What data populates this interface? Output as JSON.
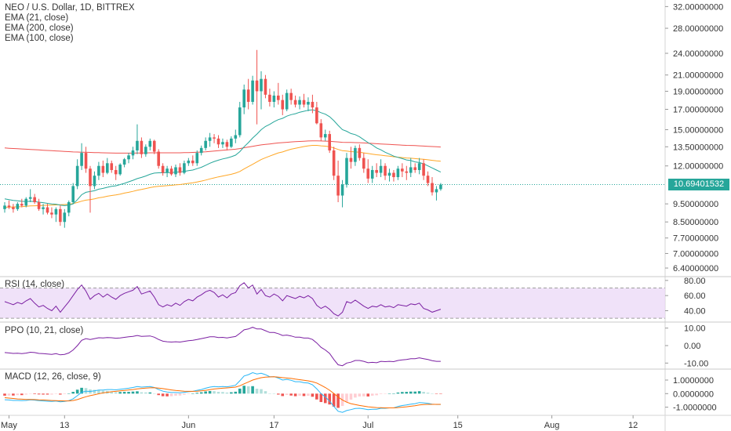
{
  "header": {
    "symbol_title": "NEO / U.S. Dollar, 1D, BITTREX",
    "ema21_label": "EMA (21, close)",
    "ema200_label": "EMA (200, close)",
    "ema100_label": "EMA (100, close)"
  },
  "panes": {
    "rsi_label": "RSI (14, close)",
    "ppo_label": "PPO (10, 21, close)",
    "macd_label": "MACD (12, 26, close, 9)"
  },
  "last_price": "10.69401532",
  "price_axis_labels": [
    "32.00000000",
    "28.00000000",
    "24.00000000",
    "21.00000000",
    "19.00000000",
    "17.00000000",
    "15.00000000",
    "13.50000000",
    "12.00000000",
    "9.50000000",
    "8.50000000",
    "7.70000000",
    "7.00000000",
    "6.40000000"
  ],
  "rsi_axis_labels": [
    "80.00",
    "60.00",
    "40.00"
  ],
  "ppo_axis_labels": [
    "10.00",
    "0.00",
    "-10.00"
  ],
  "macd_axis_labels": [
    "1.0000000",
    "0.0000000",
    "-1.0000000"
  ],
  "x_axis_labels": [
    "May",
    "13",
    "Jun",
    "17",
    "Jul",
    "15",
    "Aug",
    "12"
  ],
  "colors": {
    "up": "#26a69a",
    "down": "#ef5350",
    "ema21": "#26a69a",
    "ema100": "#ffa726",
    "ema200": "#ef5350",
    "rsi": "#7b1fa2",
    "rsi_band": "#e9d5f7",
    "ppo": "#7b1fa2",
    "macd": "#29b6f6",
    "signal": "#ff6d00",
    "badge": "#26a69a"
  },
  "chart_data": {
    "type": "candlestick",
    "y_scale": "log",
    "ylim": [
      6.1,
      33
    ],
    "candles": [
      [
        9.2,
        9.6,
        9.0,
        9.4
      ],
      [
        9.4,
        9.7,
        9.2,
        9.3
      ],
      [
        9.3,
        9.5,
        9.0,
        9.2
      ],
      [
        9.2,
        9.6,
        9.1,
        9.5
      ],
      [
        9.5,
        9.8,
        9.3,
        9.4
      ],
      [
        9.4,
        9.9,
        9.3,
        9.8
      ],
      [
        9.8,
        10.4,
        9.6,
        9.9
      ],
      [
        9.9,
        10.1,
        9.5,
        9.6
      ],
      [
        9.6,
        9.8,
        9.1,
        9.2
      ],
      [
        9.2,
        9.5,
        8.9,
        9.3
      ],
      [
        9.3,
        9.5,
        8.9,
        9.0
      ],
      [
        9.0,
        9.3,
        8.7,
        8.9
      ],
      [
        8.9,
        9.3,
        8.5,
        9.2
      ],
      [
        9.2,
        9.4,
        8.3,
        8.5
      ],
      [
        8.5,
        9.2,
        8.2,
        9.0
      ],
      [
        9.0,
        9.7,
        8.8,
        9.6
      ],
      [
        9.6,
        10.8,
        9.5,
        10.6
      ],
      [
        10.6,
        12.5,
        10.4,
        12.0
      ],
      [
        12.0,
        13.8,
        11.7,
        13.0
      ],
      [
        13.0,
        13.5,
        11.5,
        11.8
      ],
      [
        11.8,
        12.0,
        9.0,
        10.6
      ],
      [
        10.6,
        11.6,
        10.4,
        11.3
      ],
      [
        11.3,
        12.3,
        11.0,
        12.0
      ],
      [
        12.0,
        12.4,
        11.2,
        11.5
      ],
      [
        11.5,
        12.6,
        11.4,
        12.2
      ],
      [
        12.2,
        12.4,
        11.5,
        11.7
      ],
      [
        11.7,
        12.0,
        11.0,
        11.4
      ],
      [
        11.4,
        12.2,
        11.3,
        12.1
      ],
      [
        12.1,
        12.6,
        11.9,
        12.5
      ],
      [
        12.5,
        13.0,
        12.2,
        12.8
      ],
      [
        12.8,
        13.5,
        12.5,
        13.2
      ],
      [
        13.2,
        15.5,
        12.9,
        14.0
      ],
      [
        14.0,
        14.3,
        12.6,
        12.9
      ],
      [
        12.9,
        13.7,
        12.7,
        13.5
      ],
      [
        13.5,
        14.2,
        13.2,
        14.0
      ],
      [
        14.0,
        14.1,
        12.9,
        13.1
      ],
      [
        13.1,
        13.3,
        11.8,
        12.0
      ],
      [
        12.0,
        12.2,
        11.3,
        11.5
      ],
      [
        11.5,
        12.0,
        11.2,
        11.8
      ],
      [
        11.8,
        12.0,
        11.3,
        11.4
      ],
      [
        11.4,
        12.1,
        11.2,
        11.9
      ],
      [
        11.9,
        12.2,
        11.3,
        11.5
      ],
      [
        11.5,
        12.4,
        11.4,
        12.2
      ],
      [
        12.2,
        12.6,
        12.0,
        12.4
      ],
      [
        12.4,
        12.8,
        12.0,
        12.2
      ],
      [
        12.2,
        13.2,
        12.0,
        13.0
      ],
      [
        13.0,
        13.6,
        12.8,
        13.4
      ],
      [
        13.4,
        14.3,
        13.2,
        14.0
      ],
      [
        14.0,
        14.7,
        13.5,
        14.3
      ],
      [
        14.3,
        14.6,
        13.8,
        14.2
      ],
      [
        14.2,
        14.5,
        13.4,
        13.7
      ],
      [
        13.7,
        14.2,
        13.4,
        13.9
      ],
      [
        13.9,
        14.1,
        13.2,
        13.5
      ],
      [
        13.5,
        14.4,
        13.4,
        14.2
      ],
      [
        14.2,
        15.0,
        13.8,
        14.5
      ],
      [
        14.5,
        17.8,
        14.3,
        17.2
      ],
      [
        17.2,
        19.8,
        16.5,
        19.2
      ],
      [
        19.2,
        20.5,
        17.0,
        17.8
      ],
      [
        17.8,
        20.9,
        17.5,
        20.3
      ],
      [
        20.3,
        24.5,
        15.5,
        19.0
      ],
      [
        19.0,
        21.5,
        17.0,
        20.5
      ],
      [
        20.5,
        21.0,
        18.2,
        18.6
      ],
      [
        18.6,
        19.3,
        17.3,
        17.8
      ],
      [
        17.8,
        19.0,
        17.2,
        18.5
      ],
      [
        18.5,
        20.0,
        17.5,
        18.0
      ],
      [
        18.0,
        18.6,
        16.4,
        17.0
      ],
      [
        17.0,
        19.2,
        16.8,
        18.8
      ],
      [
        18.8,
        19.3,
        17.5,
        18.0
      ],
      [
        18.0,
        18.5,
        17.2,
        17.5
      ],
      [
        17.5,
        18.4,
        17.0,
        18.0
      ],
      [
        18.0,
        18.7,
        17.2,
        17.5
      ],
      [
        17.5,
        18.3,
        16.8,
        17.8
      ],
      [
        17.8,
        18.6,
        16.6,
        17.2
      ],
      [
        17.2,
        17.8,
        15.5,
        15.6
      ],
      [
        15.6,
        16.0,
        14.0,
        14.3
      ],
      [
        14.3,
        15.0,
        14.0,
        14.6
      ],
      [
        14.6,
        14.9,
        13.0,
        13.2
      ],
      [
        13.2,
        13.5,
        11.0,
        11.3
      ],
      [
        11.3,
        12.4,
        9.6,
        10.0
      ],
      [
        10.0,
        11.0,
        9.3,
        10.7
      ],
      [
        10.7,
        13.0,
        10.5,
        12.6
      ],
      [
        12.6,
        13.5,
        11.8,
        12.3
      ],
      [
        12.3,
        13.6,
        12.0,
        13.4
      ],
      [
        13.4,
        13.7,
        12.4,
        12.6
      ],
      [
        12.6,
        13.0,
        11.5,
        11.8
      ],
      [
        11.8,
        12.5,
        10.8,
        11.1
      ],
      [
        11.1,
        12.0,
        10.8,
        11.7
      ],
      [
        11.7,
        12.2,
        11.2,
        11.5
      ],
      [
        11.5,
        12.5,
        11.2,
        12.0
      ],
      [
        12.0,
        12.2,
        11.0,
        11.3
      ],
      [
        11.3,
        11.8,
        10.9,
        11.5
      ],
      [
        11.5,
        11.7,
        10.9,
        11.2
      ],
      [
        11.2,
        12.0,
        11.0,
        11.8
      ],
      [
        11.8,
        12.2,
        11.2,
        11.6
      ],
      [
        11.6,
        12.0,
        11.0,
        11.5
      ],
      [
        11.5,
        12.6,
        11.2,
        11.9
      ],
      [
        11.9,
        12.2,
        11.5,
        11.7
      ],
      [
        11.7,
        12.6,
        11.4,
        12.2
      ],
      [
        12.2,
        12.5,
        11.0,
        11.3
      ],
      [
        11.3,
        11.6,
        10.6,
        10.8
      ],
      [
        10.8,
        11.2,
        10.0,
        10.2
      ],
      [
        10.2,
        10.6,
        9.7,
        10.4
      ],
      [
        10.4,
        10.8,
        10.3,
        10.7
      ]
    ],
    "ema21": [
      9.8,
      9.75,
      9.7,
      9.68,
      9.65,
      9.64,
      9.65,
      9.63,
      9.6,
      9.57,
      9.53,
      9.5,
      9.48,
      9.43,
      9.4,
      9.42,
      9.5,
      9.75,
      10.05,
      10.2,
      10.25,
      10.3,
      10.4,
      10.45,
      10.52,
      10.58,
      10.62,
      10.7,
      10.78,
      10.88,
      10.98,
      11.1,
      11.18,
      11.28,
      11.4,
      11.48,
      11.5,
      11.5,
      11.52,
      11.52,
      11.55,
      11.56,
      11.6,
      11.66,
      11.7,
      11.8,
      11.9,
      12.05,
      12.2,
      12.33,
      12.43,
      12.53,
      12.6,
      12.7,
      12.82,
      13.1,
      13.5,
      13.85,
      14.25,
      14.6,
      15.0,
      15.3,
      15.5,
      15.75,
      15.95,
      16.08,
      16.3,
      16.45,
      16.55,
      16.7,
      16.8,
      16.9,
      16.95,
      16.85,
      16.65,
      16.5,
      16.25,
      15.85,
      15.4,
      15.0,
      14.85,
      14.65,
      14.55,
      14.35,
      14.1,
      13.85,
      13.65,
      13.4,
      13.25,
      13.05,
      12.9,
      12.75,
      12.65,
      12.55,
      12.45,
      12.4,
      12.3,
      12.25,
      12.15,
      12.0,
      11.85,
      11.7,
      11.55
    ],
    "ema100": [
      9.3,
      9.31,
      9.32,
      9.33,
      9.34,
      9.36,
      9.38,
      9.39,
      9.4,
      9.41,
      9.42,
      9.43,
      9.44,
      9.45,
      9.46,
      9.48,
      9.52,
      9.58,
      9.66,
      9.72,
      9.75,
      9.8,
      9.86,
      9.9,
      9.96,
      10.0,
      10.04,
      10.09,
      10.15,
      10.2,
      10.26,
      10.33,
      10.38,
      10.44,
      10.5,
      10.55,
      10.58,
      10.6,
      10.63,
      10.65,
      10.68,
      10.7,
      10.74,
      10.78,
      10.82,
      10.87,
      10.93,
      11.0,
      11.08,
      11.15,
      11.22,
      11.28,
      11.34,
      11.4,
      11.48,
      11.6,
      11.78,
      11.95,
      12.12,
      12.3,
      12.48,
      12.62,
      12.75,
      12.88,
      13.0,
      13.08,
      13.2,
      13.3,
      13.38,
      13.45,
      13.52,
      13.58,
      13.62,
      13.62,
      13.58,
      13.55,
      13.5,
      13.4,
      13.28,
      13.18,
      13.15,
      13.1,
      13.08,
      13.05,
      13.0,
      12.95,
      12.9,
      12.85,
      12.82,
      12.78,
      12.74,
      12.7,
      12.66,
      12.63,
      12.6,
      12.58,
      12.55,
      12.52,
      12.5,
      12.46,
      12.42,
      12.38,
      12.35
    ],
    "ema200": [
      13.4,
      13.38,
      13.36,
      13.34,
      13.32,
      13.3,
      13.28,
      13.26,
      13.24,
      13.22,
      13.2,
      13.18,
      13.16,
      13.14,
      13.12,
      13.1,
      13.08,
      13.07,
      13.06,
      13.05,
      13.04,
      13.03,
      13.02,
      13.01,
      13.0,
      12.99,
      12.98,
      12.98,
      12.98,
      12.98,
      12.98,
      12.99,
      12.99,
      13.0,
      13.01,
      13.01,
      13.01,
      13.01,
      13.01,
      13.01,
      13.01,
      13.01,
      13.02,
      13.03,
      13.04,
      13.05,
      13.07,
      13.09,
      13.12,
      13.15,
      13.18,
      13.21,
      13.24,
      13.27,
      13.3,
      13.35,
      13.42,
      13.48,
      13.54,
      13.6,
      13.66,
      13.7,
      13.74,
      13.78,
      13.82,
      13.85,
      13.88,
      13.91,
      13.93,
      13.95,
      13.97,
      13.99,
      14.0,
      14.0,
      13.99,
      13.98,
      13.97,
      13.94,
      13.91,
      13.88,
      13.87,
      13.86,
      13.85,
      13.84,
      13.82,
      13.8,
      13.78,
      13.76,
      13.74,
      13.72,
      13.7,
      13.68,
      13.66,
      13.64,
      13.62,
      13.61,
      13.6,
      13.58,
      13.56,
      13.54,
      13.52,
      13.5,
      13.48
    ],
    "rsi": [
      52,
      50,
      48,
      51,
      49,
      53,
      56,
      50,
      45,
      47,
      43,
      40,
      46,
      38,
      45,
      52,
      60,
      68,
      74,
      66,
      55,
      60,
      63,
      58,
      62,
      58,
      55,
      60,
      63,
      65,
      67,
      72,
      62,
      64,
      66,
      58,
      48,
      45,
      48,
      46,
      50,
      47,
      52,
      55,
      53,
      58,
      61,
      65,
      67,
      64,
      58,
      61,
      57,
      62,
      64,
      73,
      77,
      70,
      74,
      62,
      68,
      60,
      58,
      62,
      59,
      53,
      60,
      58,
      56,
      59,
      57,
      60,
      56,
      47,
      43,
      46,
      42,
      36,
      33,
      38,
      52,
      50,
      54,
      50,
      46,
      43,
      46,
      45,
      48,
      45,
      46,
      44,
      48,
      47,
      46,
      49,
      48,
      50,
      43,
      41,
      38,
      40,
      42
    ],
    "rsi_ylim": [
      26,
      84
    ],
    "ppo": [
      -4,
      -4.2,
      -4.5,
      -4.4,
      -4.6,
      -4.3,
      -3.8,
      -4,
      -4.5,
      -4.6,
      -4.8,
      -5,
      -4.6,
      -5.3,
      -5,
      -4.2,
      -2.5,
      0,
      3,
      4,
      3.5,
      4,
      4.5,
      4.4,
      4.6,
      4.5,
      4.2,
      4.4,
      4.7,
      5,
      5.3,
      5.8,
      5.3,
      5.4,
      5.5,
      4.8,
      3.5,
      2.5,
      2.2,
      2,
      2.2,
      2,
      2.4,
      2.8,
      3,
      3.5,
      4,
      4.5,
      5,
      5,
      4.6,
      4.7,
      4.4,
      4.8,
      5.2,
      7,
      9,
      9.5,
      10.5,
      9.5,
      9.5,
      8.5,
      7.5,
      7.5,
      6.8,
      5.8,
      6,
      5.5,
      4.8,
      4.8,
      4.3,
      4.3,
      3.5,
      1.5,
      -1,
      -2.5,
      -4.5,
      -8,
      -11,
      -11.5,
      -10,
      -9.5,
      -8.5,
      -8.5,
      -9,
      -9.8,
      -9.6,
      -9.8,
      -9,
      -9.2,
      -9,
      -9.2,
      -8.5,
      -8.2,
      -8,
      -7.5,
      -7.5,
      -7,
      -7.5,
      -8,
      -8.6,
      -9,
      -9
    ],
    "ppo_ylim": [
      -13,
      13
    ],
    "macd": [
      -0.45,
      -0.47,
      -0.5,
      -0.5,
      -0.52,
      -0.5,
      -0.46,
      -0.48,
      -0.52,
      -0.54,
      -0.56,
      -0.58,
      -0.55,
      -0.6,
      -0.58,
      -0.52,
      -0.38,
      -0.15,
      0.1,
      0.18,
      0.16,
      0.2,
      0.26,
      0.26,
      0.3,
      0.3,
      0.28,
      0.32,
      0.36,
      0.4,
      0.45,
      0.52,
      0.48,
      0.5,
      0.52,
      0.45,
      0.3,
      0.18,
      0.12,
      0.08,
      0.08,
      0.06,
      0.1,
      0.14,
      0.17,
      0.24,
      0.3,
      0.4,
      0.48,
      0.52,
      0.5,
      0.52,
      0.5,
      0.55,
      0.62,
      0.95,
      1.3,
      1.4,
      1.55,
      1.45,
      1.5,
      1.4,
      1.25,
      1.25,
      1.15,
      1.0,
      1.05,
      0.98,
      0.88,
      0.88,
      0.8,
      0.78,
      0.65,
      0.35,
      0.0,
      -0.25,
      -0.55,
      -0.95,
      -1.3,
      -1.38,
      -1.25,
      -1.18,
      -1.1,
      -1.08,
      -1.12,
      -1.18,
      -1.15,
      -1.15,
      -1.08,
      -1.08,
      -1.05,
      -1.05,
      -0.95,
      -0.88,
      -0.84,
      -0.78,
      -0.74,
      -0.66,
      -0.68,
      -0.72,
      -0.78,
      -0.8,
      -0.8
    ],
    "macd_signal": [
      -0.3,
      -0.33,
      -0.36,
      -0.39,
      -0.41,
      -0.43,
      -0.43,
      -0.44,
      -0.46,
      -0.47,
      -0.49,
      -0.51,
      -0.52,
      -0.53,
      -0.54,
      -0.54,
      -0.51,
      -0.44,
      -0.33,
      -0.23,
      -0.15,
      -0.08,
      -0.01,
      0.05,
      0.1,
      0.14,
      0.17,
      0.2,
      0.23,
      0.27,
      0.3,
      0.35,
      0.38,
      0.41,
      0.43,
      0.44,
      0.41,
      0.37,
      0.32,
      0.27,
      0.23,
      0.2,
      0.18,
      0.17,
      0.17,
      0.18,
      0.2,
      0.24,
      0.29,
      0.34,
      0.37,
      0.4,
      0.42,
      0.45,
      0.48,
      0.58,
      0.72,
      0.86,
      1.0,
      1.09,
      1.17,
      1.22,
      1.23,
      1.24,
      1.22,
      1.18,
      1.15,
      1.12,
      1.07,
      1.03,
      0.98,
      0.94,
      0.88,
      0.78,
      0.62,
      0.45,
      0.25,
      0.01,
      -0.25,
      -0.47,
      -0.63,
      -0.74,
      -0.81,
      -0.87,
      -0.92,
      -0.97,
      -1.0,
      -1.03,
      -1.04,
      -1.05,
      -1.05,
      -1.05,
      -1.03,
      -1.0,
      -0.97,
      -0.93,
      -0.89,
      -0.84,
      -0.81,
      -0.79,
      -0.79,
      -0.79,
      -0.79
    ],
    "macd_ylim": [
      -1.6,
      1.75
    ],
    "x_tick_indices": [
      1,
      14,
      43,
      63,
      85,
      106,
      128,
      147
    ]
  }
}
